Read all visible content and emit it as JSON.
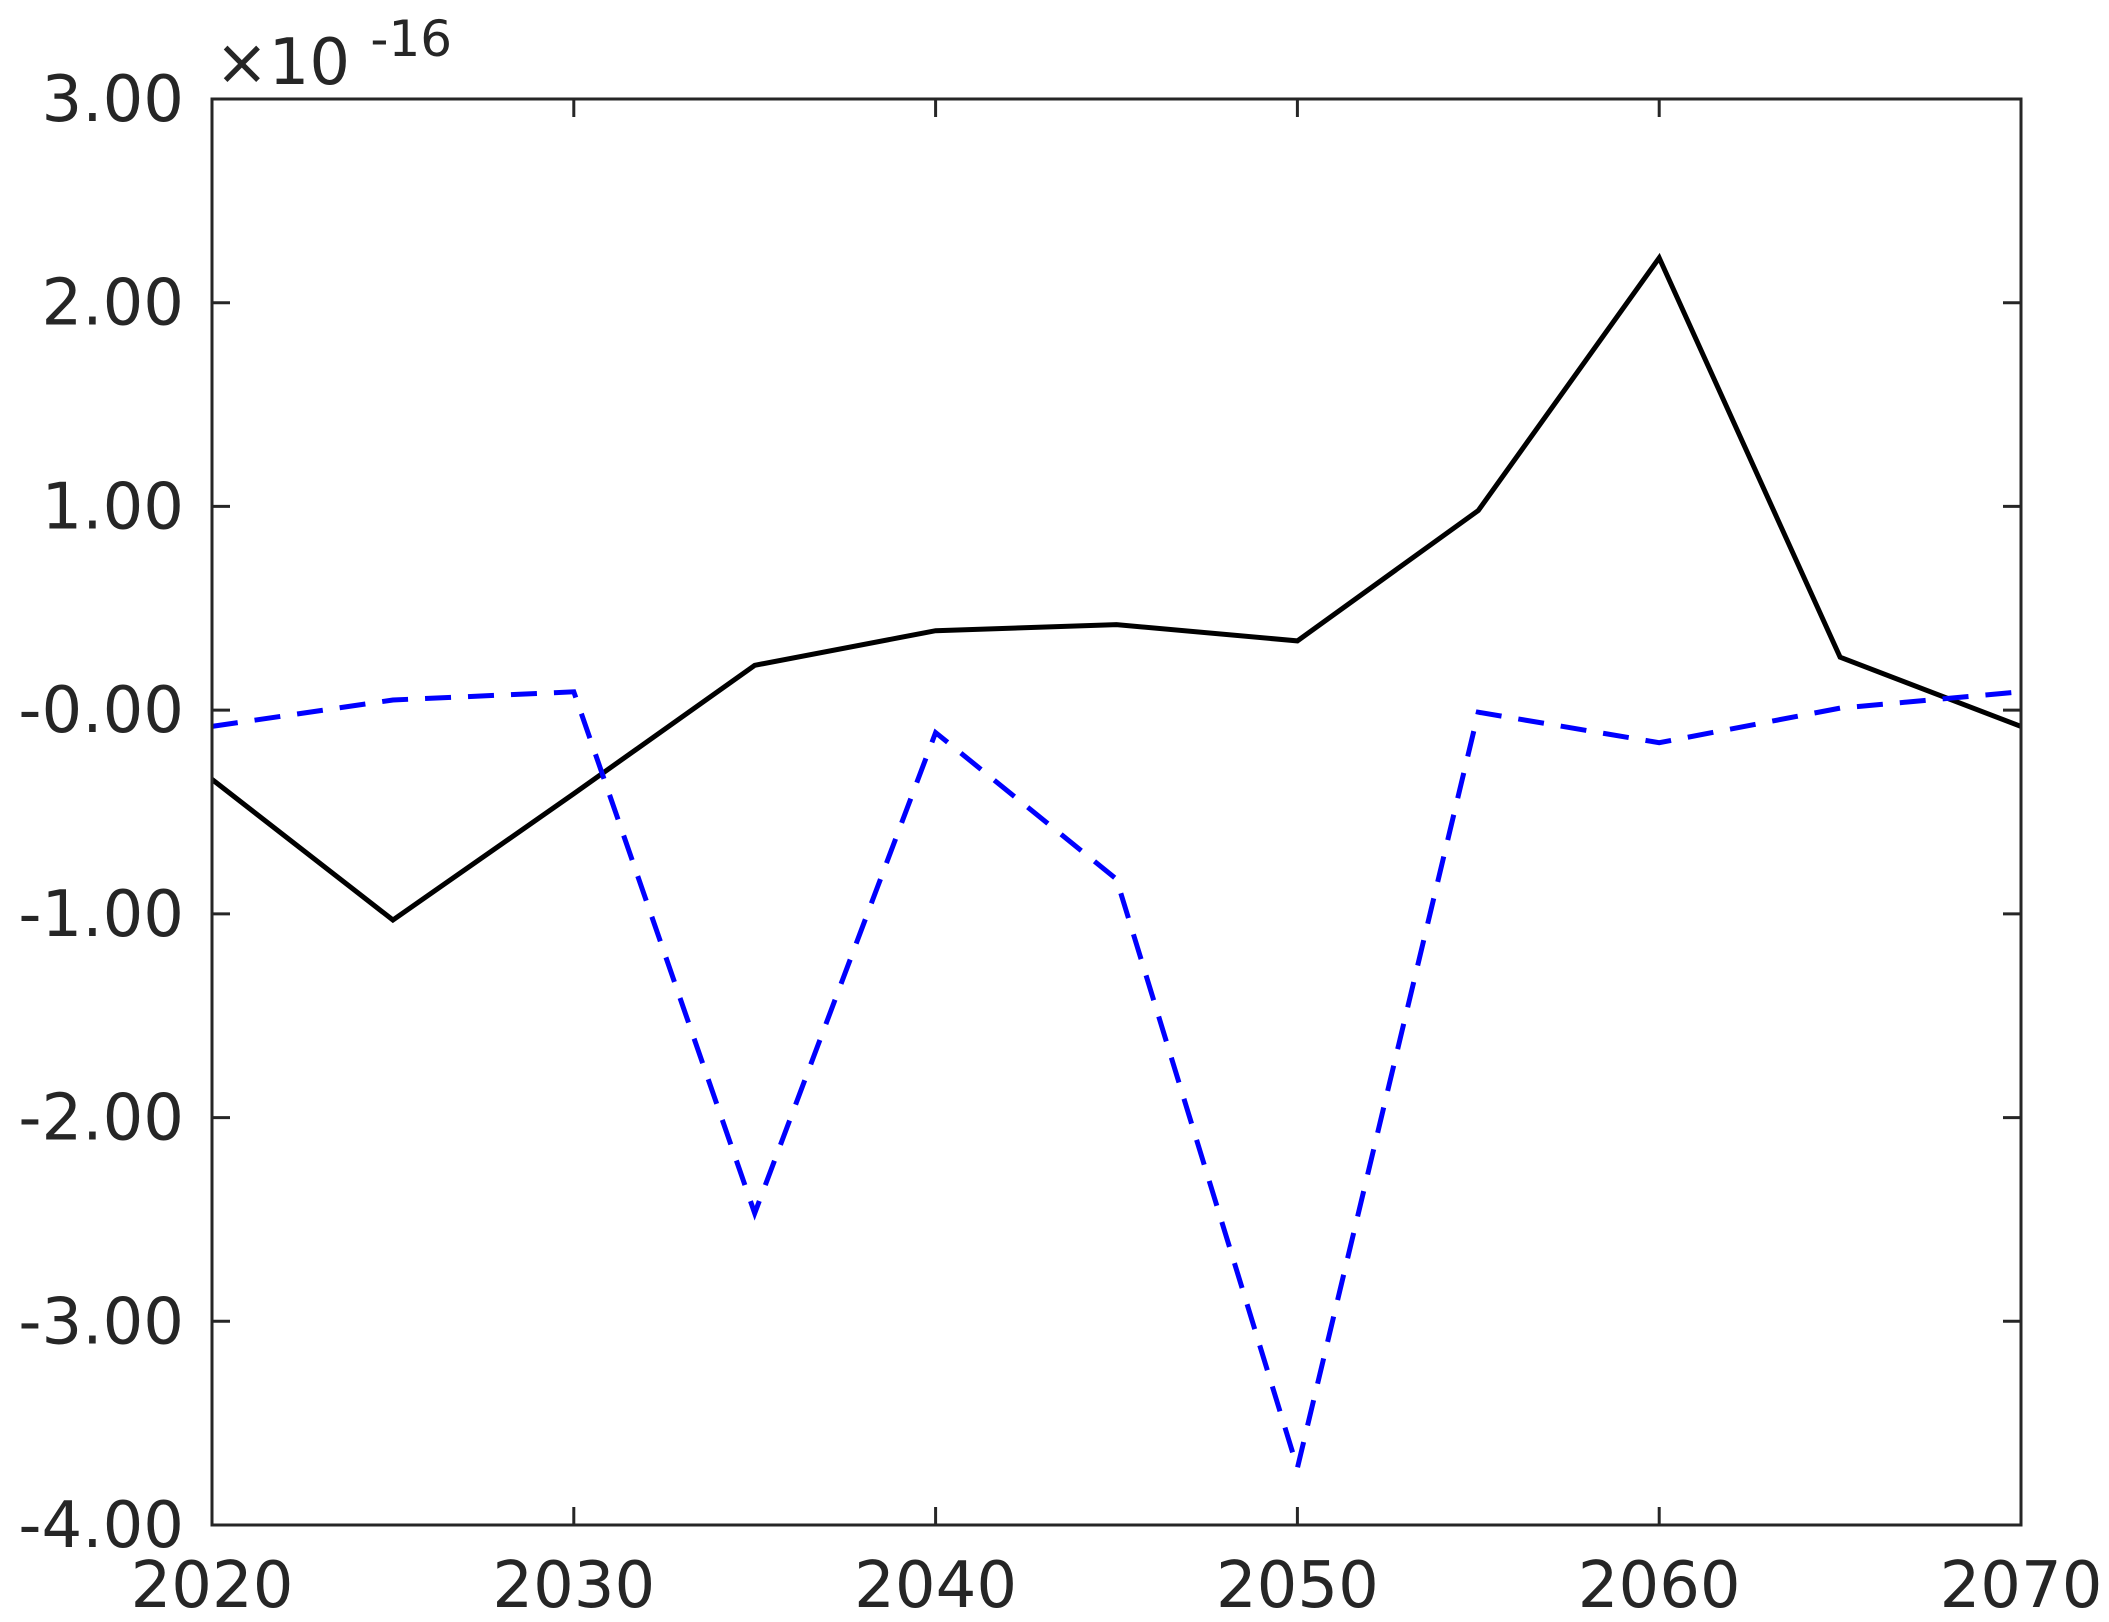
{
  "chart_data": {
    "type": "line",
    "exponent_label": {
      "base": "×10",
      "power": "-16"
    },
    "x": [
      2020,
      2025,
      2030,
      2035,
      2040,
      2045,
      2050,
      2055,
      2060,
      2065,
      2070
    ],
    "xlim": [
      2020,
      2070
    ],
    "ylim": [
      -4.0,
      3.0
    ],
    "x_ticks": [
      2020,
      2030,
      2040,
      2050,
      2060,
      2070
    ],
    "x_tick_labels": [
      "2020",
      "2030",
      "2040",
      "2050",
      "2060",
      "2070"
    ],
    "y_ticks": [
      3,
      2,
      1,
      0,
      -1,
      -2,
      -3,
      -4
    ],
    "y_tick_labels": [
      "3.00",
      "2.00",
      "1.00",
      "-0.00",
      "-1.00",
      "-2.00",
      "-3.00",
      "-4.00"
    ],
    "grid": false,
    "series": [
      {
        "values": [
          -0.34,
          -1.03,
          -0.41,
          0.22,
          0.39,
          0.42,
          0.34,
          0.98,
          2.22,
          0.26,
          -0.08
        ],
        "color": "#000000",
        "dash": "solid"
      },
      {
        "values": [
          -0.08,
          0.05,
          0.09,
          -2.47,
          -0.11,
          -0.83,
          -3.72,
          -0.01,
          -0.16,
          0.01,
          0.09
        ],
        "color": "#0000ff",
        "dash": "dashed"
      }
    ]
  }
}
